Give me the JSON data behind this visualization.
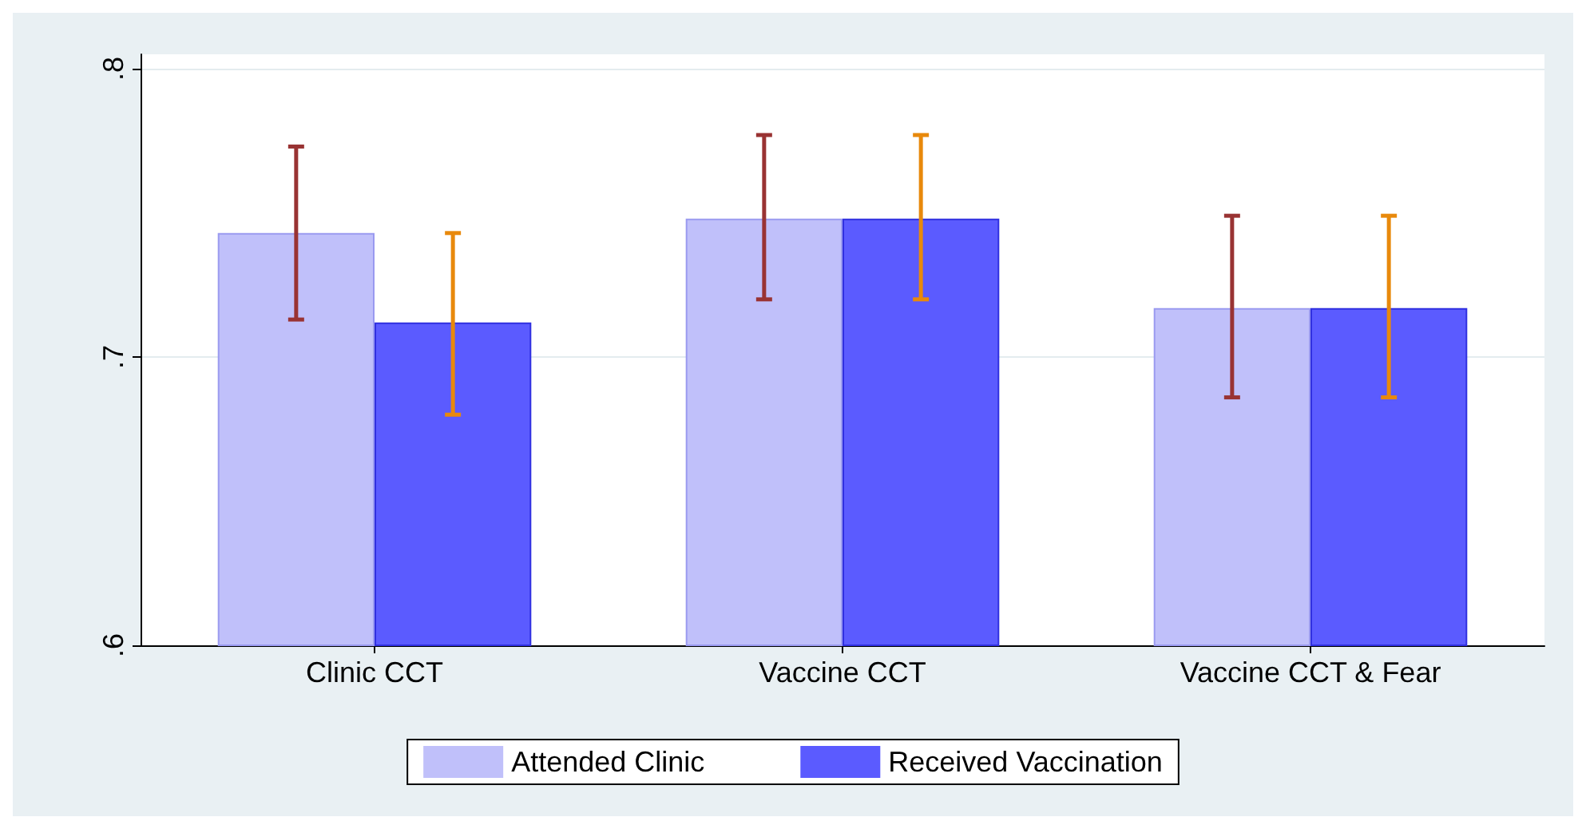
{
  "chart_data": {
    "type": "bar",
    "categories": [
      "Clinic CCT",
      "Vaccine CCT",
      "Vaccine CCT & Fear"
    ],
    "series": [
      {
        "name": "Attended Clinic",
        "color": "#c0c0fa",
        "values": [
          0.743,
          0.748,
          0.717
        ],
        "errors": [
          [
            0.713,
            0.773
          ],
          [
            0.72,
            0.777
          ],
          [
            0.686,
            0.749
          ]
        ]
      },
      {
        "name": "Received Vaccination",
        "color": "#5b5bff",
        "values": [
          0.712,
          0.748,
          0.717
        ],
        "errors": [
          [
            0.68,
            0.743
          ],
          [
            0.72,
            0.777
          ],
          [
            0.686,
            0.749
          ]
        ]
      }
    ],
    "ylim": [
      0.6,
      0.805
    ],
    "yticks": [
      {
        "value": 0.6,
        "label": ".6"
      },
      {
        "value": 0.7,
        "label": ".7"
      },
      {
        "value": 0.8,
        "label": ".8"
      }
    ],
    "grid": "y",
    "legend": "bottom"
  }
}
